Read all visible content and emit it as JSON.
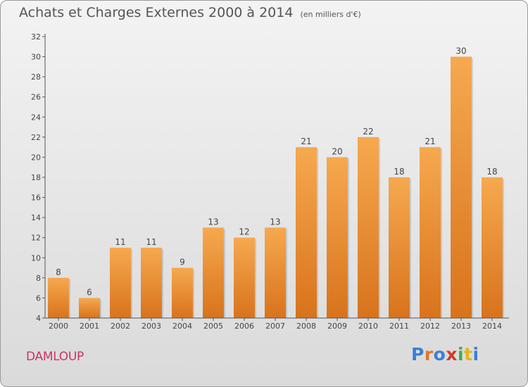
{
  "header": {
    "title": "Achats et Charges Externes 2000 à 2014",
    "unit": "(en milliers d'€)"
  },
  "footer": {
    "place": "DAMLOUP",
    "logo_letters": [
      "P",
      "r",
      "o",
      "x",
      "i",
      "t",
      "i"
    ],
    "logo_colors": [
      "#3a7fd5",
      "#e0782a",
      "#3a7fd5",
      "#d33a2a",
      "#3fae49",
      "#e8b21c",
      "#3a7fd5"
    ]
  },
  "chart_data": {
    "type": "bar",
    "categories": [
      "2000",
      "2001",
      "2002",
      "2003",
      "2004",
      "2005",
      "2006",
      "2007",
      "2008",
      "2009",
      "2010",
      "2011",
      "2012",
      "2013",
      "2014"
    ],
    "values": [
      8,
      6,
      11,
      11,
      9,
      13,
      12,
      13,
      21,
      20,
      22,
      18,
      21,
      30,
      18
    ],
    "ylim": [
      4,
      32
    ],
    "yticks": [
      4,
      6,
      8,
      10,
      12,
      14,
      16,
      18,
      20,
      22,
      24,
      26,
      28,
      30,
      32
    ],
    "grid": false,
    "bar_color_light": "#f6a94f",
    "bar_color_dark": "#d8731c",
    "axis_color": "#555555"
  }
}
